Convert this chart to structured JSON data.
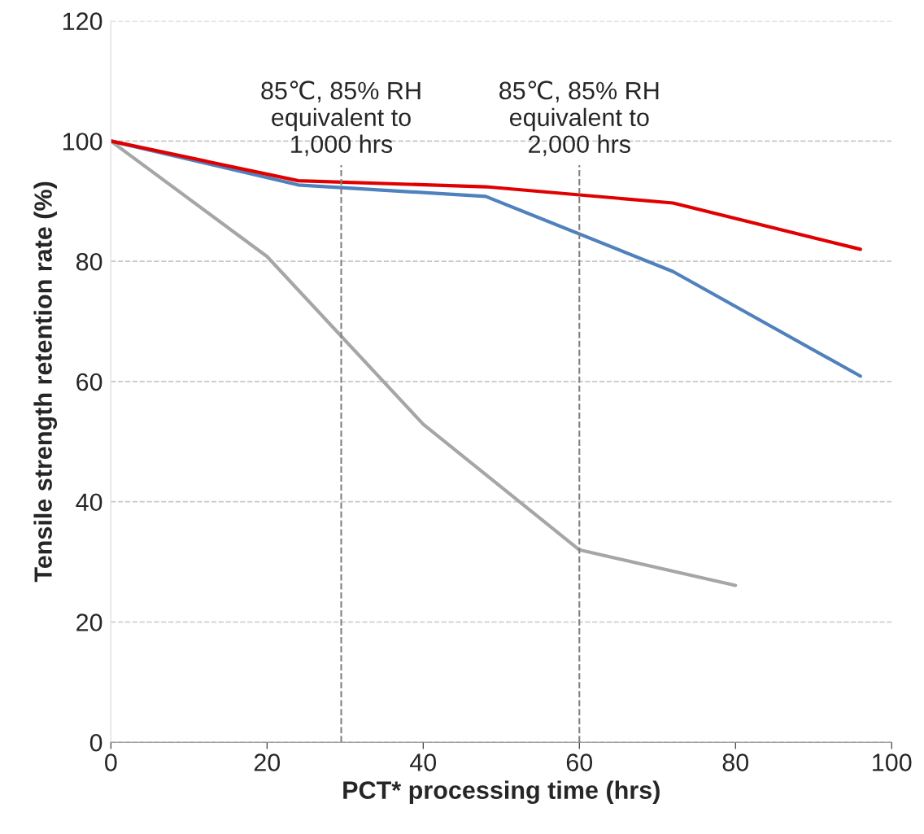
{
  "chart_data": {
    "type": "line",
    "xlabel": "PCT* processing time (hrs)",
    "ylabel": "Tensile strength retention rate (%)",
    "xlim": [
      0,
      100
    ],
    "xticks": [
      0,
      20,
      40,
      60,
      80,
      100
    ],
    "ylim": [
      0,
      120
    ],
    "yticks": [
      0,
      20,
      40,
      60,
      80,
      100,
      120
    ],
    "grid": "y",
    "legend": false,
    "line_style": "solid",
    "marker": "none",
    "series": [
      {
        "color": "#a6a6a6",
        "x": [
          0,
          20,
          40,
          60,
          80
        ],
        "values": [
          100,
          80.8,
          52.9,
          32.0,
          26.1
        ]
      },
      {
        "color": "#4f81bd",
        "x": [
          0,
          24,
          48,
          72,
          96
        ],
        "values": [
          100,
          92.7,
          90.8,
          78.3,
          60.9
        ]
      },
      {
        "color": "#e00000",
        "x": [
          0,
          24,
          48,
          72,
          96
        ],
        "values": [
          100,
          93.4,
          92.4,
          89.7,
          82.0
        ]
      }
    ],
    "ref_lines": [
      {
        "axis": "x",
        "value": 29.5,
        "label": "85℃, 85% RH\nequivalent to\n1,000 hrs",
        "color": "#808080",
        "line_style": "dashed"
      },
      {
        "axis": "x",
        "value": 60,
        "label": "85℃, 85% RH\nequivalent to\n2,000 hrs",
        "color": "#808080",
        "line_style": "dashed"
      }
    ]
  }
}
